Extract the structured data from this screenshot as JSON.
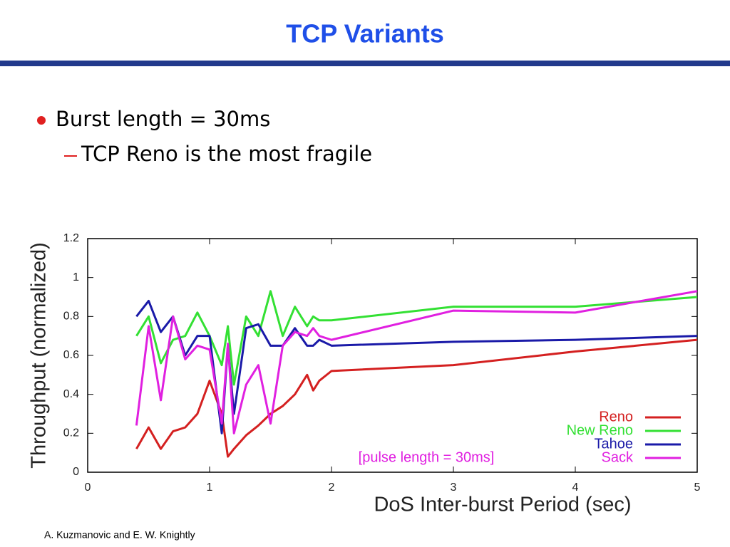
{
  "slide": {
    "title": "TCP Variants",
    "bullet": "Burst length = 30ms",
    "sub_bullet": "TCP Reno is the most fragile",
    "footer": "A. Kuzmanovic and E. W. Knightly"
  },
  "chart_data": {
    "type": "line",
    "xlabel": "DoS Inter-burst Period (sec)",
    "ylabel": "Throughput (normalized)",
    "annotation": "[pulse length = 30ms]",
    "x": [
      0.4,
      0.5,
      0.6,
      0.7,
      0.8,
      0.9,
      1.0,
      1.1,
      1.15,
      1.2,
      1.3,
      1.4,
      1.5,
      1.6,
      1.7,
      1.8,
      1.85,
      1.9,
      2.0,
      3.0,
      4.0,
      5.0
    ],
    "series": [
      {
        "name": "Reno",
        "color": "#d42020",
        "values": [
          0.12,
          0.23,
          0.12,
          0.21,
          0.23,
          0.3,
          0.47,
          0.3,
          0.08,
          0.12,
          0.19,
          0.24,
          0.3,
          0.34,
          0.4,
          0.5,
          0.42,
          0.47,
          0.52,
          0.55,
          0.62,
          0.68
        ]
      },
      {
        "name": "New Reno",
        "color": "#33e033",
        "values": [
          0.7,
          0.8,
          0.56,
          0.68,
          0.7,
          0.82,
          0.7,
          0.55,
          0.75,
          0.45,
          0.8,
          0.7,
          0.93,
          0.7,
          0.85,
          0.75,
          0.8,
          0.78,
          0.78,
          0.85,
          0.85,
          0.9
        ]
      },
      {
        "name": "Tahoe",
        "color": "#1a1aa8",
        "values": [
          0.8,
          0.88,
          0.72,
          0.8,
          0.6,
          0.7,
          0.7,
          0.2,
          0.65,
          0.3,
          0.74,
          0.76,
          0.65,
          0.65,
          0.74,
          0.65,
          0.65,
          0.68,
          0.65,
          0.67,
          0.68,
          0.7
        ]
      },
      {
        "name": "Sack",
        "color": "#e020e0",
        "values": [
          0.24,
          0.75,
          0.37,
          0.8,
          0.58,
          0.65,
          0.63,
          0.25,
          0.66,
          0.2,
          0.45,
          0.55,
          0.25,
          0.65,
          0.72,
          0.7,
          0.74,
          0.7,
          0.68,
          0.83,
          0.82,
          0.93
        ]
      }
    ],
    "xlim": [
      0,
      5
    ],
    "ylim": [
      0,
      1.2
    ],
    "xticks": [
      0,
      1,
      2,
      3,
      4,
      5
    ],
    "yticks": [
      0,
      0.2,
      0.4,
      0.6,
      0.8,
      1,
      1.2
    ],
    "legend": "lower-right"
  }
}
